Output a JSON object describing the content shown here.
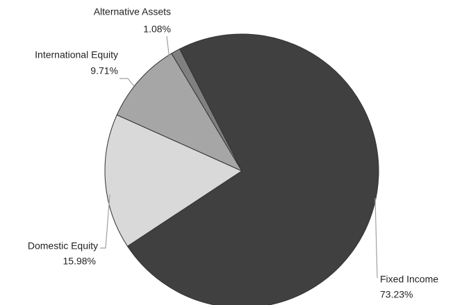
{
  "chart_data": {
    "type": "pie",
    "categories": [
      "Fixed Income",
      "Domestic Equity",
      "International Equity",
      "Alternative Assets"
    ],
    "values": [
      73.23,
      15.98,
      9.71,
      1.08
    ],
    "value_labels": [
      "73.23%",
      "15.98%",
      "9.71%",
      "1.08%"
    ],
    "colors": [
      "#404040",
      "#d9d9d9",
      "#a6a6a6",
      "#808080"
    ]
  }
}
